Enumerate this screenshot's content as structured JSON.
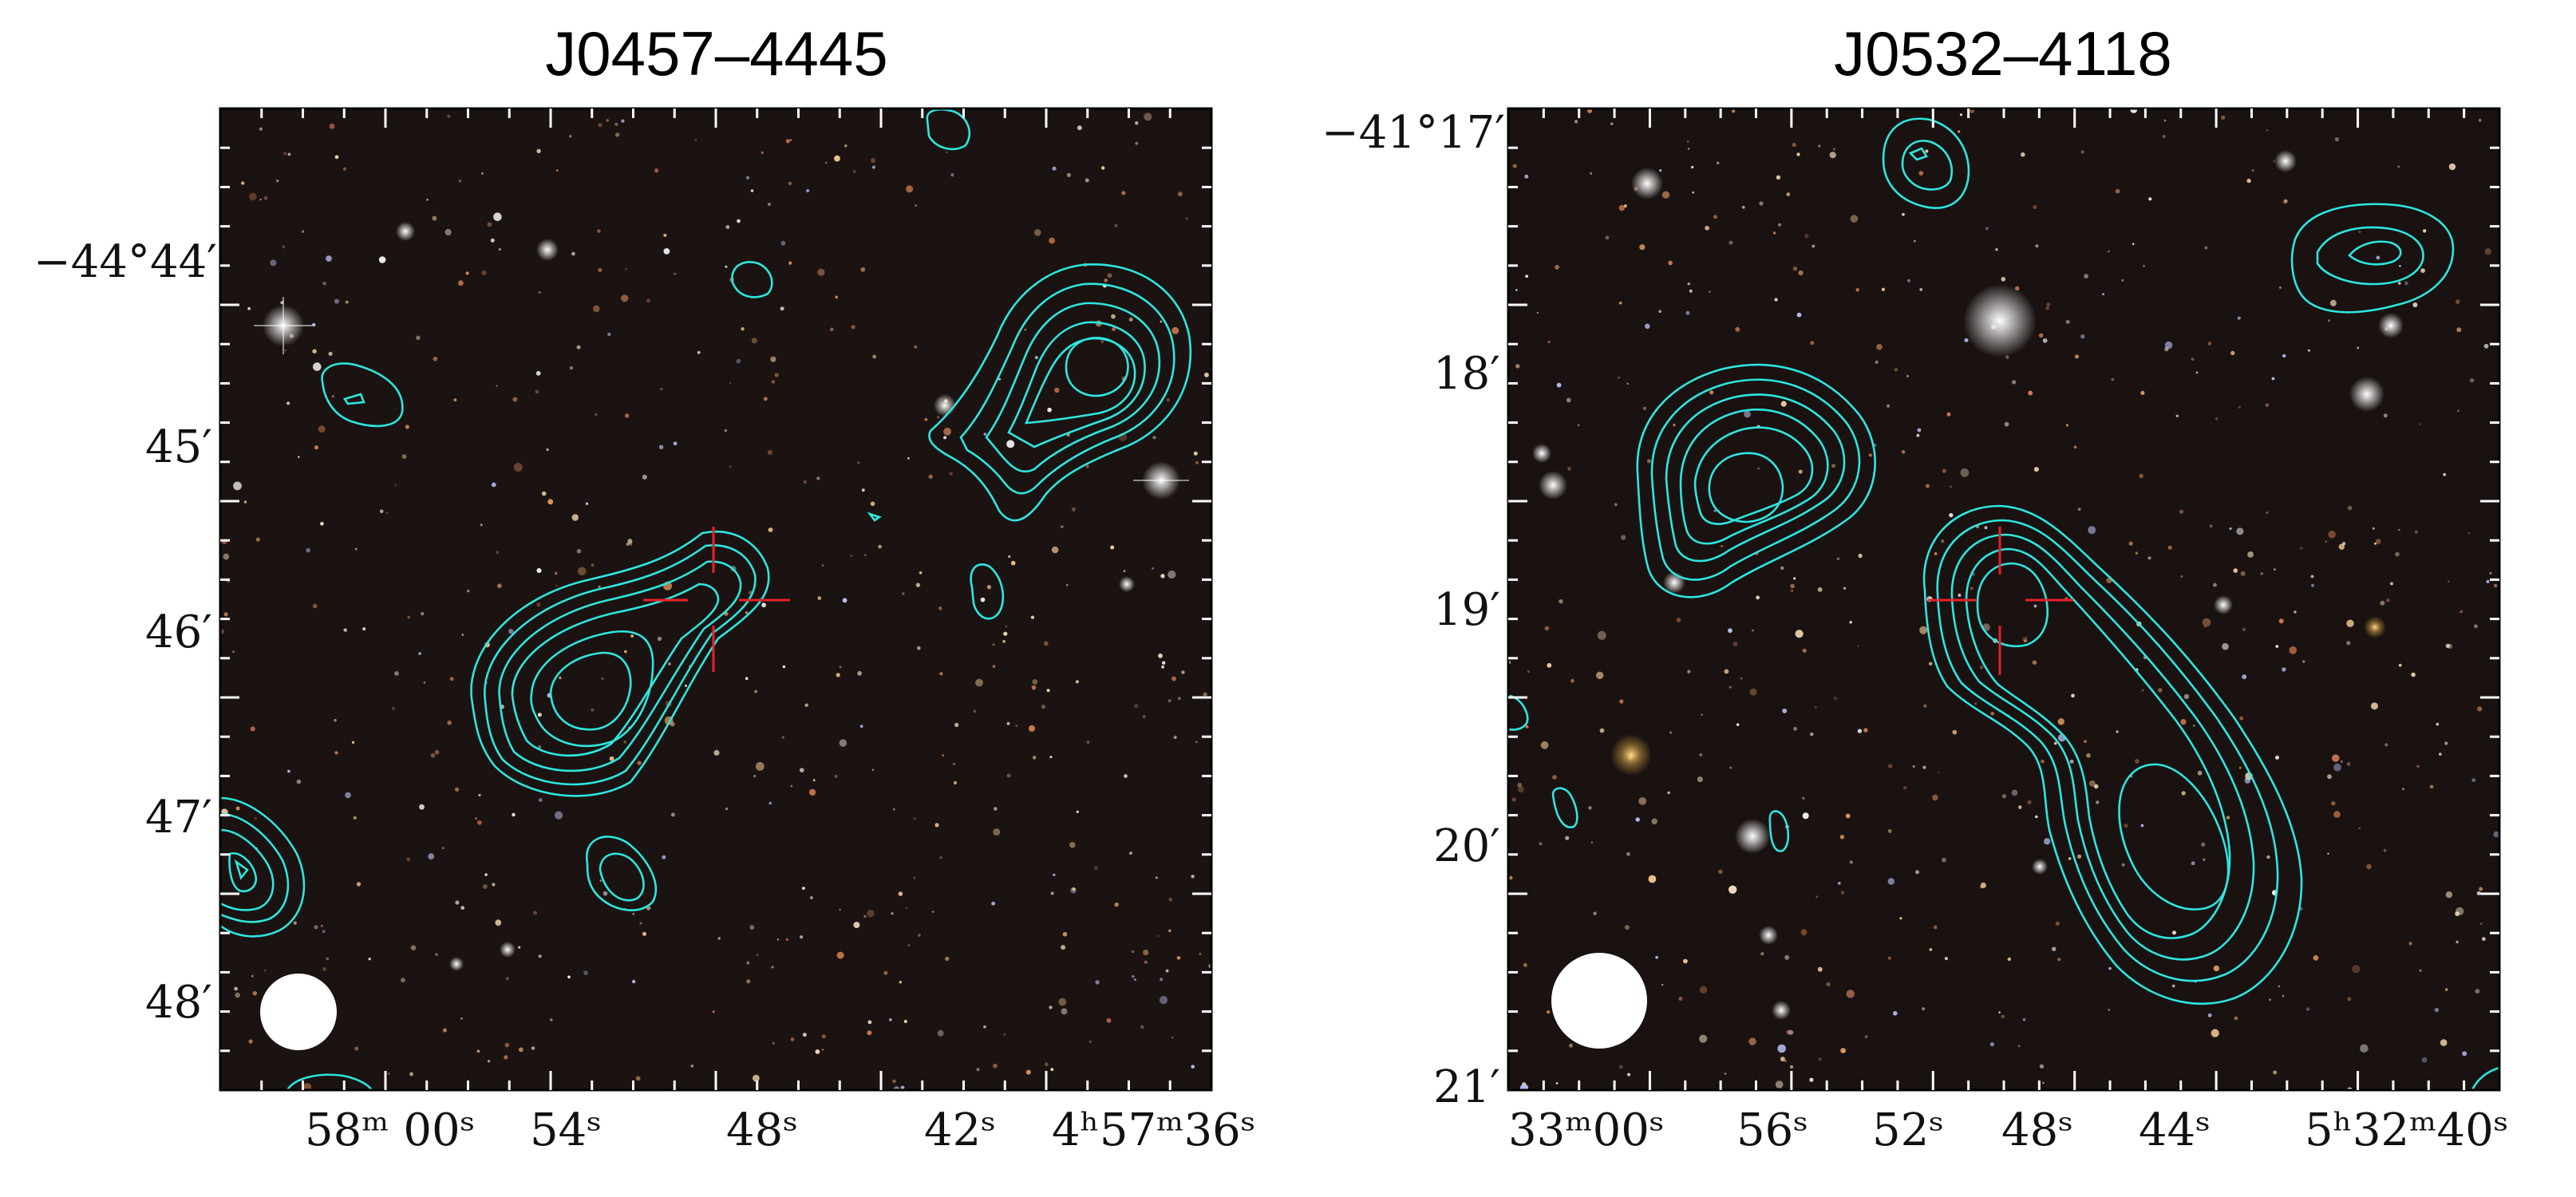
{
  "panels": [
    {
      "title": "J0457–4445",
      "dec_ticks": [
        "−44°44′",
        "45′",
        "46′",
        "47′",
        "48′"
      ],
      "ra_ticks": [
        "58ᵐ 00ˢ",
        "54ˢ",
        "48ˢ",
        "42ˢ",
        "4ʰ57ᵐ36ˢ"
      ]
    },
    {
      "title": "J0532–4118",
      "dec_ticks": [
        "−41°17′",
        "18′",
        "19′",
        "20′",
        "21′"
      ],
      "ra_ticks": [
        "33ᵐ00ˢ",
        "56ˢ",
        "52ˢ",
        "48ˢ",
        "44ˢ",
        "5ʰ32ᵐ40ˢ"
      ]
    }
  ],
  "colors": {
    "sky": "#1a1210",
    "contour": "#2ee6e0",
    "crosshair": "#e8202a",
    "beam": "#ffffff"
  }
}
